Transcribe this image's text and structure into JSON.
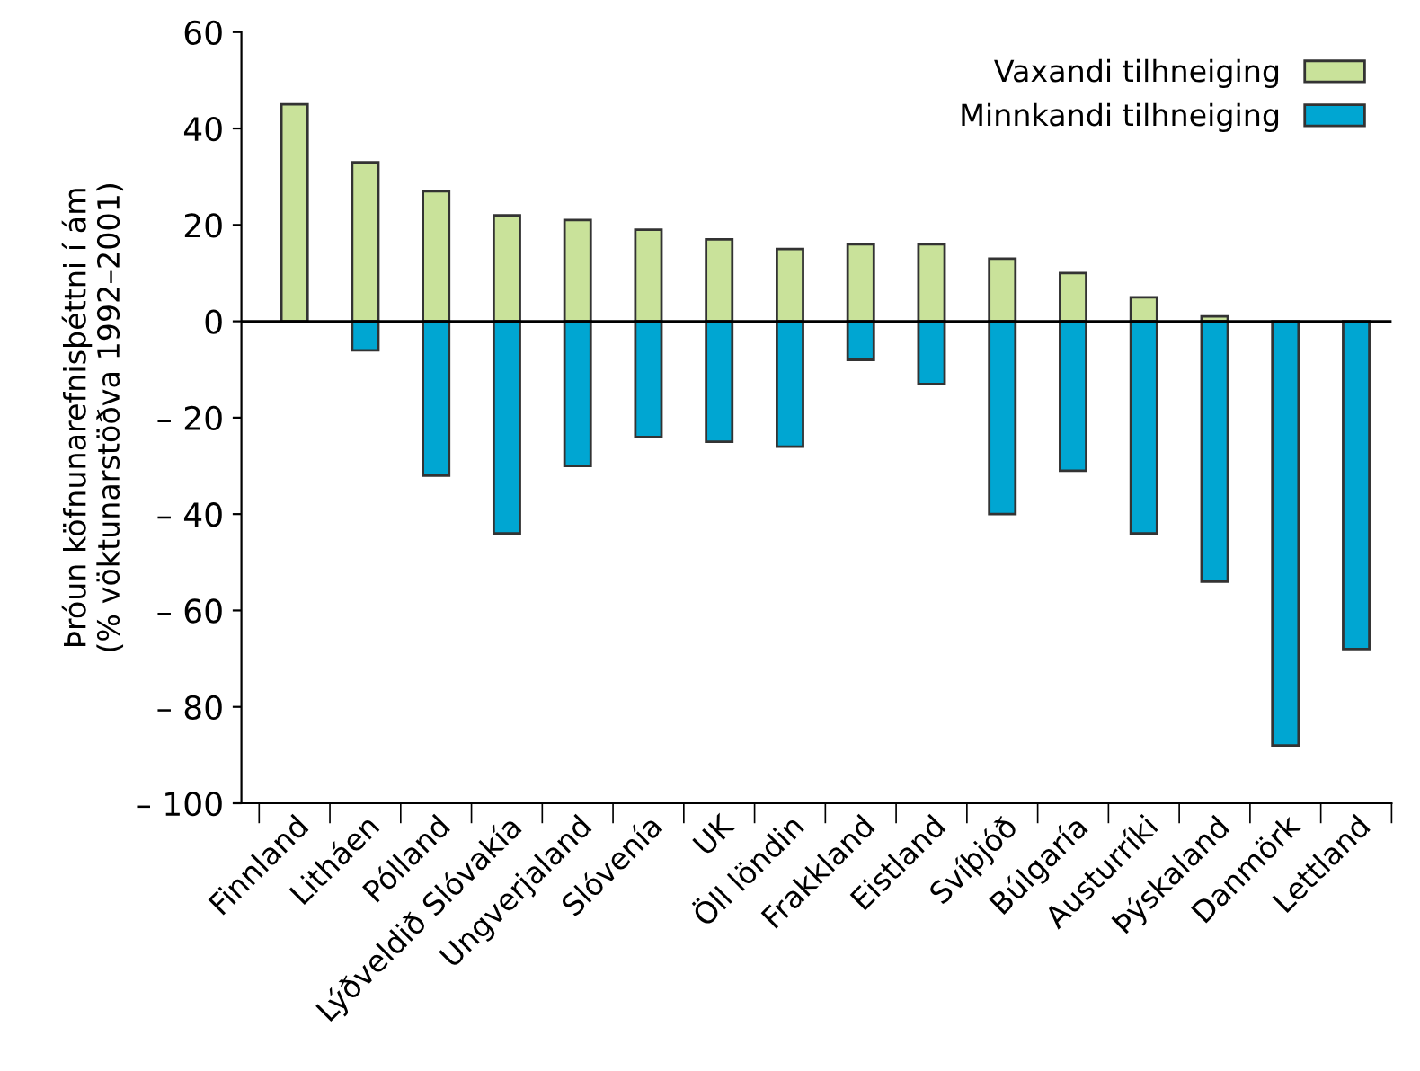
{
  "chart_data": {
    "type": "bar",
    "stacked": true,
    "ylabel": "Þróun köfnunarefnisþéttni í ám\n(% vöktunarstöðva 1992–2001)",
    "categories": [
      "Finnland",
      "Litháen",
      "Pólland",
      "Lýðveldið Slóvakía",
      "Ungverjaland",
      "Slóvenía",
      "UK",
      "Öll löndin",
      "Frakkland",
      "Eistland",
      "Svíþjóð",
      "Búlgaría",
      "Austurríki",
      "Þýskaland",
      "Danmörk",
      "Lettland"
    ],
    "series": [
      {
        "name": "Vaxandi tilhneiging",
        "color": "#c9e29a",
        "values": [
          45,
          33,
          27,
          22,
          21,
          19,
          17,
          15,
          16,
          16,
          13,
          10,
          5,
          1,
          null,
          null
        ]
      },
      {
        "name": "Minnkandi tilhneiging",
        "color": "#00a6d2",
        "values": [
          null,
          -6,
          -32,
          -44,
          -30,
          -24,
          -25,
          -26,
          -8,
          -13,
          -40,
          -31,
          -44,
          -54,
          -88,
          -68
        ]
      }
    ],
    "ylim": [
      -100,
      60
    ],
    "yticks": [
      {
        "value": -100,
        "label": "– 100"
      },
      {
        "value": -80,
        "label": "– 80"
      },
      {
        "value": -60,
        "label": "– 60"
      },
      {
        "value": -40,
        "label": "– 40"
      },
      {
        "value": -20,
        "label": "– 20"
      },
      0,
      20,
      40,
      60
    ],
    "ref_lines": [
      {
        "axis": "y",
        "value": 0,
        "color": "#000000"
      }
    ],
    "legend": "top right",
    "grid": false
  }
}
